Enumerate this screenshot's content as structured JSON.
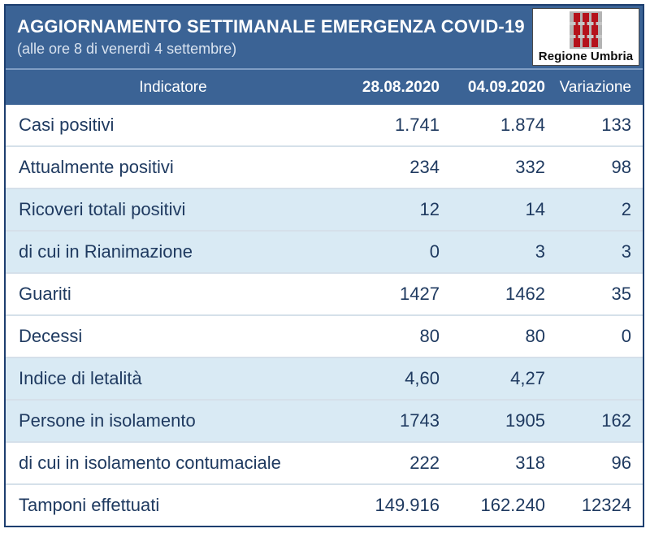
{
  "header": {
    "title": "AGGIORNAMENTO SETTIMANALE EMERGENZA COVID-19",
    "subtitle": "(alle ore 8 di venerdì 4 settembre)",
    "logo_label": "Regione Umbria"
  },
  "table": {
    "columns": [
      "Indicatore",
      "28.08.2020",
      "04.09.2020",
      "Variazione"
    ],
    "rows": [
      {
        "label": "Casi positivi",
        "v1": "1.741",
        "v2": "1.874",
        "variazione": "133",
        "shaded": false
      },
      {
        "label": "Attualmente positivi",
        "v1": "234",
        "v2": "332",
        "variazione": "98",
        "shaded": false
      },
      {
        "label": "Ricoveri totali positivi",
        "v1": "12",
        "v2": "14",
        "variazione": "2",
        "shaded": true
      },
      {
        "label": "di cui in Rianimazione",
        "v1": "0",
        "v2": "3",
        "variazione": "3",
        "shaded": true
      },
      {
        "label": "Guariti",
        "v1": "1427",
        "v2": "1462",
        "variazione": "35",
        "shaded": false
      },
      {
        "label": "Decessi",
        "v1": "80",
        "v2": "80",
        "variazione": "0",
        "shaded": false
      },
      {
        "label": "Indice di letalità",
        "v1": "4,60",
        "v2": "4,27",
        "variazione": "",
        "shaded": true
      },
      {
        "label": "Persone in isolamento",
        "v1": "1743",
        "v2": "1905",
        "variazione": "162",
        "shaded": true
      },
      {
        "label": "di cui in isolamento contumaciale",
        "v1": "222",
        "v2": "318",
        "variazione": "96",
        "shaded": false
      },
      {
        "label": "Tamponi effettuati",
        "v1": "149.916",
        "v2": "162.240",
        "variazione": "12324",
        "shaded": false
      }
    ]
  },
  "chart_data": {
    "type": "table",
    "title": "AGGIORNAMENTO SETTIMANALE EMERGENZA COVID-19",
    "subtitle": "(alle ore 8 di venerdì 4 settembre)",
    "columns": [
      "Indicatore",
      "28.08.2020",
      "04.09.2020",
      "Variazione"
    ],
    "rows": [
      [
        "Casi positivi",
        "1.741",
        "1.874",
        "133"
      ],
      [
        "Attualmente positivi",
        "234",
        "332",
        "98"
      ],
      [
        "Ricoveri totali positivi",
        "12",
        "14",
        "2"
      ],
      [
        "di cui in Rianimazione",
        "0",
        "3",
        "3"
      ],
      [
        "Guariti",
        "1427",
        "1462",
        "35"
      ],
      [
        "Decessi",
        "80",
        "80",
        "0"
      ],
      [
        "Indice di letalità",
        "4,60",
        "4,27",
        ""
      ],
      [
        "Persone in isolamento",
        "1743",
        "1905",
        "162"
      ],
      [
        "di cui in isolamento contumaciale",
        "222",
        "318",
        "96"
      ],
      [
        "Tamponi effettuati",
        "149.916",
        "162.240",
        "12324"
      ]
    ]
  },
  "colors": {
    "banner_blue": "#3b6395",
    "shaded_row_blue": "#d9eaf4",
    "text_navy": "#1f3a60",
    "outer_border_navy": "#1d3e6f",
    "banner_separator": "#7f9dc4",
    "row_separator": "#d5e0ea",
    "logo_red": "#b5121b",
    "logo_gray": "#b4b4b4"
  }
}
